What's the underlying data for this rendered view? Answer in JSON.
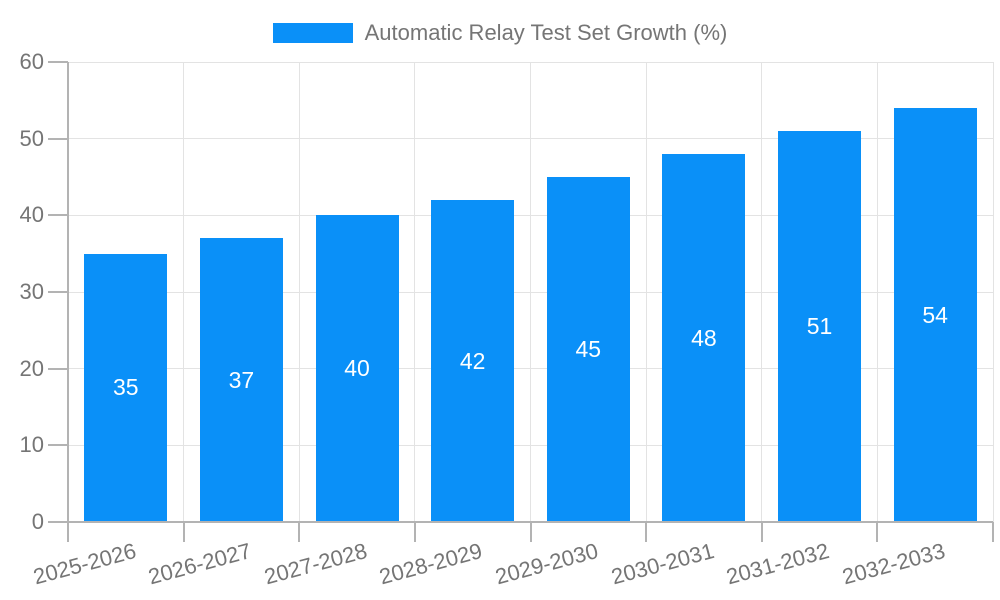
{
  "chart_data": {
    "type": "bar",
    "title": "Automatic Relay Test Set Growth (%)",
    "categories": [
      "2025-2026",
      "2026-2027",
      "2027-2028",
      "2028-2029",
      "2029-2030",
      "2030-2031",
      "2031-2032",
      "2032-2033"
    ],
    "series": [
      {
        "name": "Automatic Relay Test Set Growth (%)",
        "values": [
          35,
          37,
          40,
          42,
          45,
          48,
          51,
          54
        ]
      }
    ],
    "xlabel": "",
    "ylabel": "",
    "ylim": [
      0,
      60
    ],
    "yticks": [
      0,
      10,
      20,
      30,
      40,
      50,
      60
    ],
    "grid": true,
    "legend_position": "top-center",
    "value_labels": "inside-center",
    "x_label_rotation_deg": -15
  },
  "colors": {
    "bar": "#0a90f8",
    "text": "#757575",
    "axis": "#b3b3b3",
    "grid": "#e3e3e3",
    "value_label": "#ffffff",
    "background": "#ffffff"
  }
}
